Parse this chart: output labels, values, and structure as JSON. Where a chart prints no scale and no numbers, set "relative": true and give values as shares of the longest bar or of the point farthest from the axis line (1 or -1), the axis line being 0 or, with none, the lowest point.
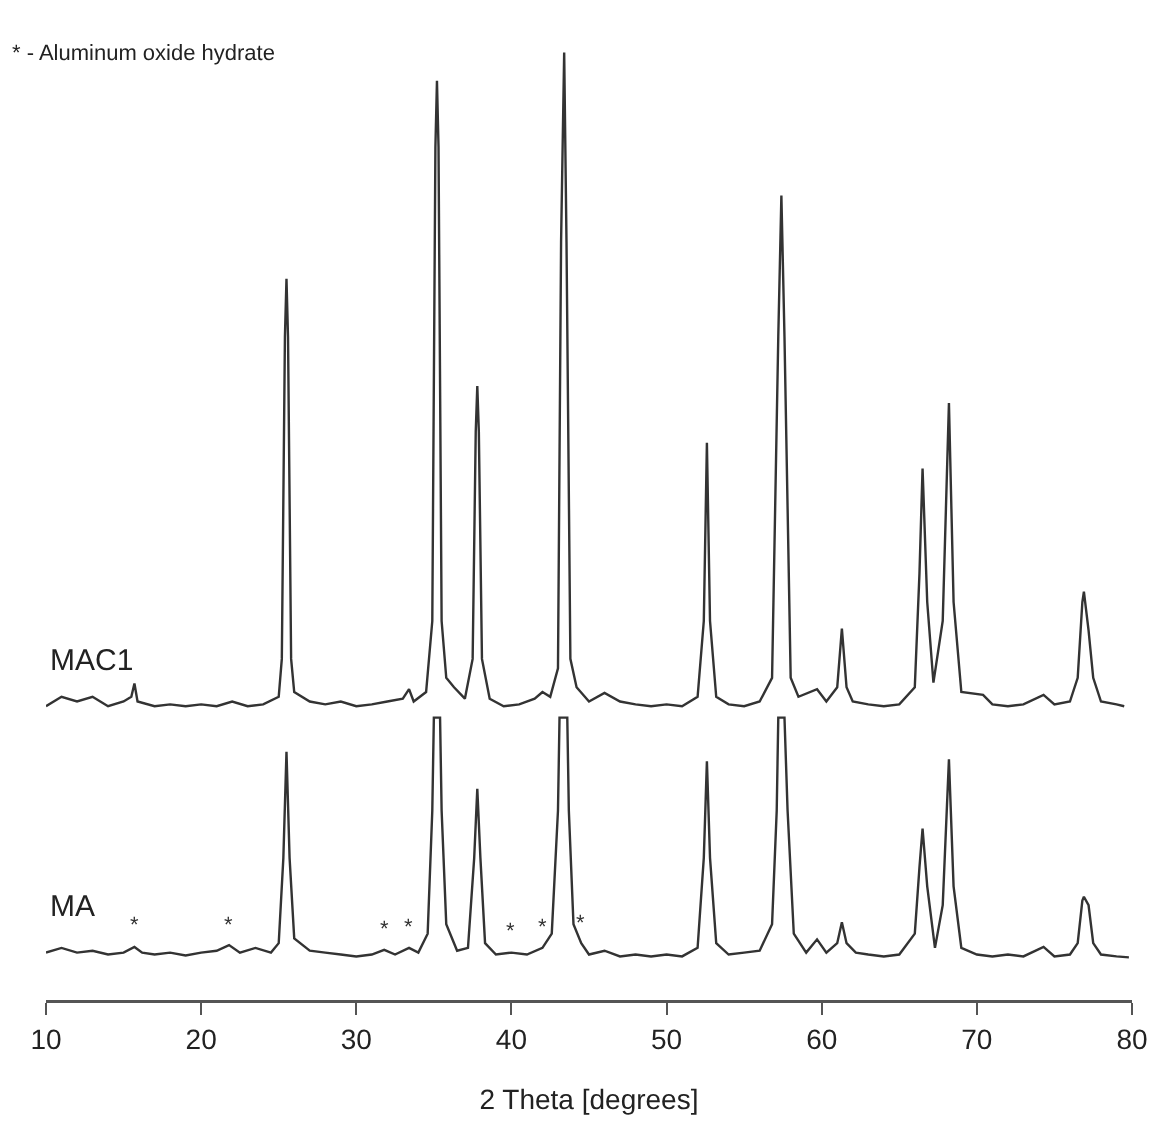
{
  "chart_data": {
    "type": "line",
    "relative": true,
    "xlabel": "2 Theta [degrees]",
    "xlim": [
      10,
      80
    ],
    "xticks": [
      10,
      20,
      30,
      40,
      50,
      60,
      70,
      80
    ],
    "grid": false,
    "legend": false,
    "marker": "none",
    "line_style": "solid",
    "tick_labels": "x",
    "annotations": [
      "* - Aluminum oxide hydrate",
      {
        "text": "*",
        "x": 15.7,
        "y": 0.056
      },
      {
        "text": "*",
        "x": 21.8,
        "y": 0.058
      },
      {
        "text": "*",
        "x": 31.8,
        "y": 0.053
      },
      {
        "text": "*",
        "x": 33.4,
        "y": 0.055
      },
      {
        "text": "*",
        "x": 40,
        "y": 0.05
      },
      {
        "text": "*",
        "x": 42,
        "y": 0.055
      },
      {
        "text": "*",
        "x": 44.5,
        "y": 0.06
      }
    ],
    "series": [
      {
        "name": "MAC1",
        "color": "#333333",
        "x": [
          10,
          11,
          12,
          13,
          14,
          15,
          15.5,
          15.7,
          15.9,
          17,
          18,
          19,
          20,
          21,
          22,
          23,
          24,
          25,
          25.2,
          25.4,
          25.5,
          25.6,
          25.8,
          26,
          27,
          28,
          29,
          30,
          31,
          32,
          33,
          33.4,
          33.7,
          34.5,
          34.9,
          35.1,
          35.2,
          35.3,
          35.5,
          35.8,
          36.3,
          37,
          37.5,
          37.7,
          37.8,
          37.9,
          38.1,
          38.6,
          39.5,
          40.5,
          41.5,
          42,
          42.5,
          43,
          43.2,
          43.4,
          43.55,
          43.8,
          44.2,
          45,
          46,
          47,
          48,
          49,
          50,
          51,
          52,
          52.4,
          52.6,
          52.8,
          53.2,
          54,
          55,
          56,
          56.8,
          57.2,
          57.4,
          57.6,
          58,
          58.5,
          59.7,
          60.3,
          61,
          61.3,
          61.6,
          62,
          63,
          64,
          65,
          66,
          66.3,
          66.5,
          66.8,
          67.2,
          67.8,
          68.2,
          68.5,
          69,
          70.4,
          71,
          72,
          73,
          74.3,
          75,
          76,
          76.5,
          76.8,
          76.9,
          77.2,
          77.5,
          78,
          79,
          79.5
        ],
        "values": [
          0.31,
          0.32,
          0.315,
          0.32,
          0.31,
          0.315,
          0.32,
          0.334,
          0.315,
          0.31,
          0.312,
          0.31,
          0.312,
          0.31,
          0.315,
          0.31,
          0.312,
          0.32,
          0.36,
          0.7,
          0.761,
          0.7,
          0.36,
          0.325,
          0.315,
          0.312,
          0.315,
          0.31,
          0.312,
          0.315,
          0.318,
          0.328,
          0.315,
          0.325,
          0.4,
          0.9,
          0.97,
          0.9,
          0.4,
          0.34,
          0.33,
          0.318,
          0.36,
          0.6,
          0.648,
          0.6,
          0.36,
          0.318,
          0.31,
          0.312,
          0.318,
          0.325,
          0.32,
          0.35,
          0.8,
          1.0,
          0.8,
          0.36,
          0.33,
          0.315,
          0.324,
          0.315,
          0.312,
          0.31,
          0.312,
          0.31,
          0.32,
          0.4,
          0.588,
          0.4,
          0.32,
          0.312,
          0.31,
          0.315,
          0.34,
          0.7,
          0.849,
          0.7,
          0.34,
          0.32,
          0.328,
          0.315,
          0.33,
          0.392,
          0.33,
          0.315,
          0.312,
          0.31,
          0.312,
          0.33,
          0.45,
          0.561,
          0.42,
          0.335,
          0.4,
          0.63,
          0.42,
          0.325,
          0.322,
          0.312,
          0.31,
          0.312,
          0.322,
          0.312,
          0.315,
          0.34,
          0.42,
          0.431,
          0.39,
          0.34,
          0.315,
          0.312,
          0.31
        ]
      },
      {
        "name": "MA",
        "color": "#333333",
        "x": [
          10,
          11,
          12,
          13,
          14,
          15,
          15.7,
          16.2,
          17,
          18,
          19,
          20,
          21,
          21.8,
          22.5,
          23.5,
          24.5,
          25,
          25.3,
          25.5,
          25.7,
          26,
          27,
          28,
          29,
          30,
          31,
          31.8,
          32.5,
          33.4,
          34,
          34.6,
          34.9,
          35.0,
          35.4,
          35.5,
          35.8,
          36.5,
          37.2,
          37.6,
          37.8,
          38,
          38.3,
          39,
          40,
          41,
          42,
          42.6,
          43.0,
          43.1,
          43.6,
          43.7,
          44,
          44.5,
          45,
          46,
          47,
          48,
          49,
          50,
          51,
          52,
          52.4,
          52.6,
          52.8,
          53.2,
          54,
          55,
          56,
          56.8,
          57.1,
          57.2,
          57.6,
          57.8,
          58.2,
          59,
          59.7,
          60.3,
          61,
          61.3,
          61.6,
          62.2,
          63,
          64,
          65,
          66,
          66.3,
          66.5,
          66.8,
          67.3,
          67.8,
          68.2,
          68.5,
          69,
          70,
          71,
          72,
          73,
          74.3,
          75,
          76,
          76.5,
          76.8,
          76.9,
          77.2,
          77.5,
          78,
          79,
          79.8
        ],
        "values": [
          0.05,
          0.055,
          0.05,
          0.052,
          0.048,
          0.05,
          0.056,
          0.05,
          0.048,
          0.05,
          0.047,
          0.05,
          0.052,
          0.058,
          0.05,
          0.055,
          0.05,
          0.06,
          0.15,
          0.262,
          0.15,
          0.065,
          0.052,
          0.05,
          0.048,
          0.046,
          0.048,
          0.053,
          0.048,
          0.055,
          0.05,
          0.07,
          0.2,
          0.298,
          0.298,
          0.2,
          0.08,
          0.052,
          0.055,
          0.15,
          0.223,
          0.15,
          0.06,
          0.048,
          0.05,
          0.048,
          0.055,
          0.07,
          0.2,
          0.298,
          0.298,
          0.2,
          0.08,
          0.06,
          0.048,
          0.052,
          0.046,
          0.048,
          0.046,
          0.048,
          0.046,
          0.055,
          0.15,
          0.252,
          0.15,
          0.06,
          0.048,
          0.05,
          0.052,
          0.08,
          0.2,
          0.298,
          0.298,
          0.2,
          0.07,
          0.05,
          0.064,
          0.05,
          0.06,
          0.082,
          0.06,
          0.05,
          0.048,
          0.046,
          0.048,
          0.07,
          0.14,
          0.181,
          0.12,
          0.055,
          0.1,
          0.254,
          0.12,
          0.055,
          0.048,
          0.046,
          0.048,
          0.046,
          0.056,
          0.046,
          0.048,
          0.06,
          0.105,
          0.109,
          0.1,
          0.06,
          0.048,
          0.046,
          0.045
        ]
      }
    ]
  }
}
